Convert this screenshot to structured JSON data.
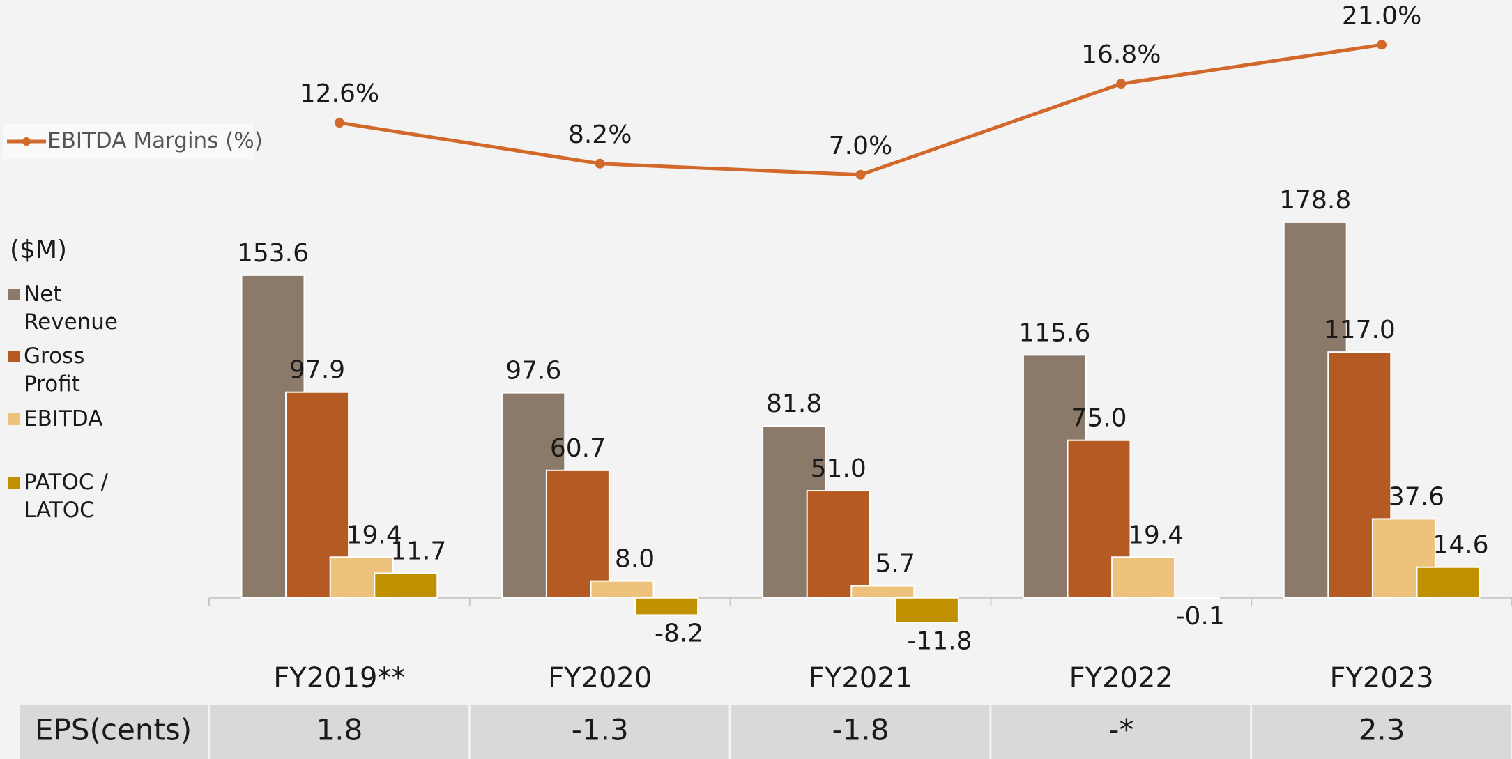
{
  "chart_data": {
    "type": "bar",
    "unit_label": "($M)",
    "categories": [
      "FY2019**",
      "FY2020",
      "FY2021",
      "FY2022",
      "FY2023"
    ],
    "ylim": [
      -20,
      200
    ],
    "y2lim": [
      0,
      25
    ],
    "series": [
      {
        "name": "Net Revenue",
        "color": "#8b7a69",
        "values": [
          153.6,
          97.6,
          81.8,
          115.6,
          178.8
        ],
        "value_labels": [
          "153.6",
          "97.6",
          "81.8",
          "115.6",
          "178.8"
        ]
      },
      {
        "name": "Gross Profit",
        "color": "#b45a22",
        "values": [
          97.9,
          60.7,
          51.0,
          75.0,
          117.0
        ],
        "value_labels": [
          "97.9",
          "60.7",
          "51.0",
          "75.0",
          "117.0"
        ]
      },
      {
        "name": "EBITDA",
        "color": "#ecc27c",
        "values": [
          19.4,
          8.0,
          5.7,
          19.4,
          37.6
        ],
        "value_labels": [
          "19.4",
          "8.0",
          "5.7",
          "19.4",
          "37.6"
        ]
      },
      {
        "name": "PATOC / LATOC",
        "color": "#bf9000",
        "values": [
          11.7,
          -8.2,
          -11.8,
          -0.1,
          14.6
        ],
        "value_labels": [
          "11.7",
          "-8.2",
          "-11.8",
          "-0.1",
          "14.6"
        ]
      },
      {
        "name": "EBITDA Margins (%)",
        "type": "line",
        "axis": "y2",
        "color": "#d2692a",
        "values": [
          12.6,
          8.2,
          7.0,
          16.8,
          21.0
        ],
        "value_labels": [
          "12.6%",
          "8.2%",
          "7.0%",
          "16.8%",
          "21.0%"
        ]
      }
    ]
  },
  "table": {
    "header": "EPS(cents)",
    "values": [
      "1.8",
      "-1.3",
      "-1.8",
      "-*",
      "2.3"
    ]
  }
}
